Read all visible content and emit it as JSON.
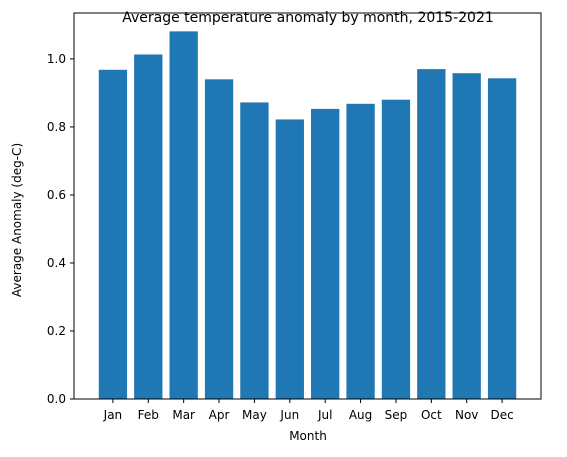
{
  "chart_data": {
    "type": "bar",
    "title": "Average temperature anomaly by month, 2015-2021",
    "xlabel": "Month",
    "ylabel": "Average Anomaly (deg-C)",
    "categories": [
      "Jan",
      "Feb",
      "Mar",
      "Apr",
      "May",
      "Jun",
      "Jul",
      "Aug",
      "Sep",
      "Oct",
      "Nov",
      "Dec"
    ],
    "values": [
      0.968,
      1.013,
      1.081,
      0.94,
      0.872,
      0.822,
      0.853,
      0.868,
      0.88,
      0.97,
      0.958,
      0.943
    ],
    "ylim": [
      0,
      1.135
    ],
    "yticks": [
      "0.0",
      "0.2",
      "0.4",
      "0.6",
      "0.8",
      "1.0"
    ],
    "bar_color": "#1f77b4",
    "grid": false,
    "legend": "none"
  }
}
